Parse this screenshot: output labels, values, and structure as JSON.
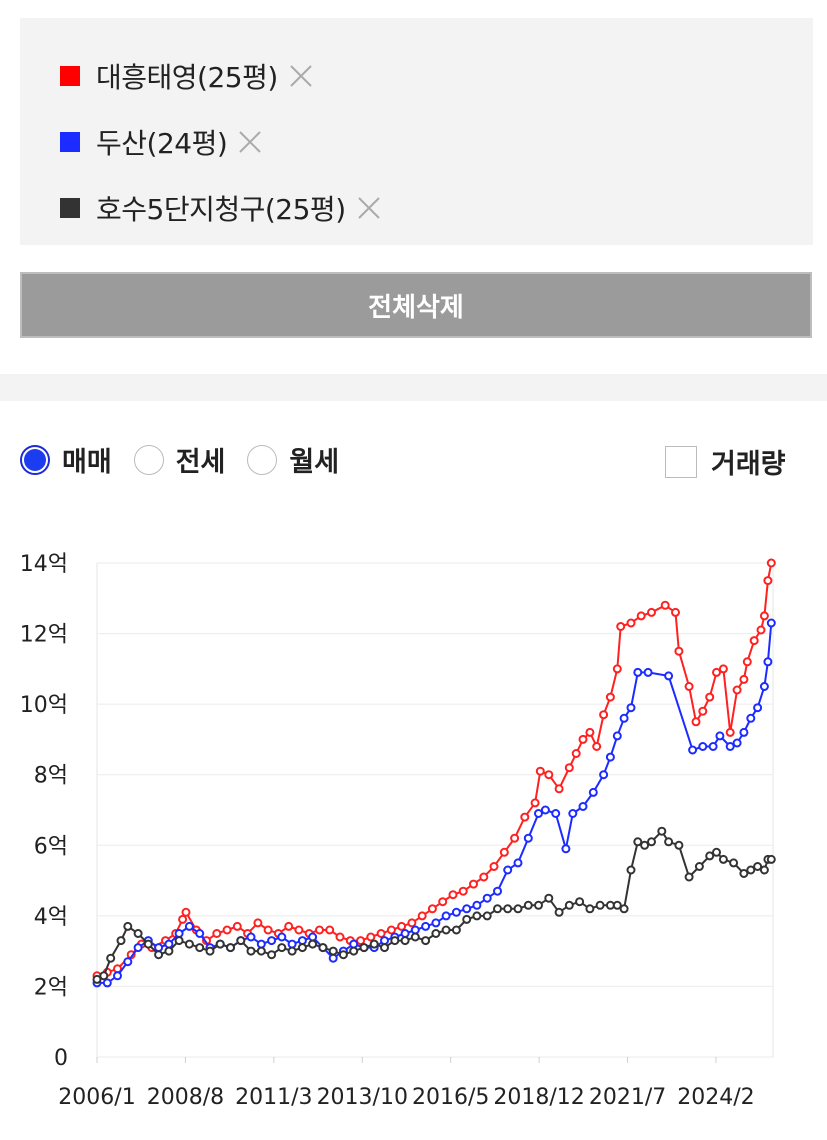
{
  "legend": {
    "items": [
      {
        "label": "대흥태영(25평)",
        "color": "#ff0000"
      },
      {
        "label": "두산(24평)",
        "color": "#1c2bff"
      },
      {
        "label": "호수5단지청구(25평)",
        "color": "#333333"
      }
    ],
    "remove_icon": "close-icon"
  },
  "delete_all_label": "전체삭제",
  "trade_types": [
    {
      "label": "매매",
      "selected": true
    },
    {
      "label": "전세",
      "selected": false
    },
    {
      "label": "월세",
      "selected": false
    }
  ],
  "volume_label": "거래량",
  "volume_checked": false,
  "chart_data": {
    "type": "line",
    "xlabel": "",
    "ylabel": "",
    "x_ticks": [
      "2006/1",
      "2008/8",
      "2011/3",
      "2013/10",
      "2016/5",
      "2018/12",
      "2021/7",
      "2024/2"
    ],
    "y_ticks": [
      "0",
      "2억",
      "4억",
      "6억",
      "8억",
      "10억",
      "12억",
      "14억"
    ],
    "ylim": [
      0,
      14
    ],
    "xlim": [
      2006.0,
      2025.75
    ],
    "grid": true,
    "legend_position": "top",
    "series": [
      {
        "name": "대흥태영(25평)",
        "color": "#ff2020",
        "points": [
          [
            2006.0,
            2.3
          ],
          [
            2006.3,
            2.4
          ],
          [
            2006.6,
            2.5
          ],
          [
            2007.0,
            2.9
          ],
          [
            2007.3,
            3.2
          ],
          [
            2007.6,
            3.1
          ],
          [
            2008.0,
            3.3
          ],
          [
            2008.3,
            3.5
          ],
          [
            2008.5,
            3.9
          ],
          [
            2008.6,
            4.1
          ],
          [
            2008.9,
            3.6
          ],
          [
            2009.2,
            3.3
          ],
          [
            2009.5,
            3.5
          ],
          [
            2009.8,
            3.6
          ],
          [
            2010.1,
            3.7
          ],
          [
            2010.4,
            3.5
          ],
          [
            2010.7,
            3.8
          ],
          [
            2011.0,
            3.6
          ],
          [
            2011.3,
            3.5
          ],
          [
            2011.6,
            3.7
          ],
          [
            2011.9,
            3.6
          ],
          [
            2012.2,
            3.5
          ],
          [
            2012.5,
            3.6
          ],
          [
            2012.8,
            3.6
          ],
          [
            2013.1,
            3.4
          ],
          [
            2013.4,
            3.3
          ],
          [
            2013.7,
            3.3
          ],
          [
            2014.0,
            3.4
          ],
          [
            2014.3,
            3.5
          ],
          [
            2014.6,
            3.6
          ],
          [
            2014.9,
            3.7
          ],
          [
            2015.2,
            3.8
          ],
          [
            2015.5,
            4.0
          ],
          [
            2015.8,
            4.2
          ],
          [
            2016.1,
            4.4
          ],
          [
            2016.4,
            4.6
          ],
          [
            2016.7,
            4.7
          ],
          [
            2017.0,
            4.9
          ],
          [
            2017.3,
            5.1
          ],
          [
            2017.6,
            5.4
          ],
          [
            2017.9,
            5.8
          ],
          [
            2018.2,
            6.2
          ],
          [
            2018.5,
            6.8
          ],
          [
            2018.8,
            7.2
          ],
          [
            2018.95,
            8.1
          ],
          [
            2019.2,
            8.0
          ],
          [
            2019.5,
            7.6
          ],
          [
            2019.8,
            8.2
          ],
          [
            2020.0,
            8.6
          ],
          [
            2020.2,
            9.0
          ],
          [
            2020.4,
            9.2
          ],
          [
            2020.6,
            8.8
          ],
          [
            2020.8,
            9.7
          ],
          [
            2021.0,
            10.2
          ],
          [
            2021.2,
            11.0
          ],
          [
            2021.3,
            12.2
          ],
          [
            2021.6,
            12.3
          ],
          [
            2021.9,
            12.5
          ],
          [
            2022.2,
            12.6
          ],
          [
            2022.6,
            12.8
          ],
          [
            2022.9,
            12.6
          ],
          [
            2023.0,
            11.5
          ],
          [
            2023.3,
            10.5
          ],
          [
            2023.5,
            9.5
          ],
          [
            2023.7,
            9.8
          ],
          [
            2023.9,
            10.2
          ],
          [
            2024.1,
            10.9
          ],
          [
            2024.3,
            11.0
          ],
          [
            2024.5,
            9.2
          ],
          [
            2024.7,
            10.4
          ],
          [
            2024.9,
            10.7
          ],
          [
            2025.0,
            11.2
          ],
          [
            2025.2,
            11.8
          ],
          [
            2025.4,
            12.1
          ],
          [
            2025.5,
            12.5
          ],
          [
            2025.6,
            13.5
          ],
          [
            2025.7,
            14.0
          ]
        ]
      },
      {
        "name": "두산(24평)",
        "color": "#1c2bff",
        "points": [
          [
            2006.0,
            2.1
          ],
          [
            2006.3,
            2.1
          ],
          [
            2006.6,
            2.3
          ],
          [
            2006.9,
            2.7
          ],
          [
            2007.2,
            3.1
          ],
          [
            2007.5,
            3.3
          ],
          [
            2007.8,
            3.1
          ],
          [
            2008.1,
            3.2
          ],
          [
            2008.4,
            3.5
          ],
          [
            2008.7,
            3.7
          ],
          [
            2009.0,
            3.5
          ],
          [
            2009.3,
            3.1
          ],
          [
            2009.6,
            3.2
          ],
          [
            2009.9,
            3.1
          ],
          [
            2010.2,
            3.3
          ],
          [
            2010.5,
            3.4
          ],
          [
            2010.8,
            3.2
          ],
          [
            2011.1,
            3.3
          ],
          [
            2011.4,
            3.4
          ],
          [
            2011.7,
            3.2
          ],
          [
            2012.0,
            3.3
          ],
          [
            2012.3,
            3.4
          ],
          [
            2012.6,
            3.1
          ],
          [
            2012.9,
            2.8
          ],
          [
            2013.2,
            3.0
          ],
          [
            2013.5,
            3.2
          ],
          [
            2013.8,
            3.1
          ],
          [
            2014.1,
            3.1
          ],
          [
            2014.4,
            3.3
          ],
          [
            2014.7,
            3.4
          ],
          [
            2015.0,
            3.5
          ],
          [
            2015.3,
            3.6
          ],
          [
            2015.6,
            3.7
          ],
          [
            2015.9,
            3.8
          ],
          [
            2016.2,
            4.0
          ],
          [
            2016.5,
            4.1
          ],
          [
            2016.8,
            4.2
          ],
          [
            2017.1,
            4.3
          ],
          [
            2017.4,
            4.5
          ],
          [
            2017.7,
            4.7
          ],
          [
            2018.0,
            5.3
          ],
          [
            2018.3,
            5.5
          ],
          [
            2018.6,
            6.2
          ],
          [
            2018.9,
            6.9
          ],
          [
            2019.1,
            7.0
          ],
          [
            2019.4,
            6.9
          ],
          [
            2019.7,
            5.9
          ],
          [
            2019.9,
            6.9
          ],
          [
            2020.2,
            7.1
          ],
          [
            2020.5,
            7.5
          ],
          [
            2020.8,
            8.0
          ],
          [
            2021.0,
            8.5
          ],
          [
            2021.2,
            9.1
          ],
          [
            2021.4,
            9.6
          ],
          [
            2021.6,
            9.9
          ],
          [
            2021.8,
            10.9
          ],
          [
            2022.1,
            10.9
          ],
          [
            2022.7,
            10.8
          ],
          [
            2023.4,
            8.7
          ],
          [
            2023.7,
            8.8
          ],
          [
            2024.0,
            8.8
          ],
          [
            2024.2,
            9.1
          ],
          [
            2024.5,
            8.8
          ],
          [
            2024.7,
            8.9
          ],
          [
            2024.9,
            9.2
          ],
          [
            2025.1,
            9.6
          ],
          [
            2025.3,
            9.9
          ],
          [
            2025.5,
            10.5
          ],
          [
            2025.6,
            11.2
          ],
          [
            2025.7,
            12.3
          ]
        ]
      },
      {
        "name": "호수5단지청구(25평)",
        "color": "#333333",
        "points": [
          [
            2006.0,
            2.2
          ],
          [
            2006.2,
            2.3
          ],
          [
            2006.4,
            2.8
          ],
          [
            2006.7,
            3.3
          ],
          [
            2006.9,
            3.7
          ],
          [
            2007.2,
            3.5
          ],
          [
            2007.5,
            3.2
          ],
          [
            2007.8,
            2.9
          ],
          [
            2008.1,
            3.0
          ],
          [
            2008.4,
            3.3
          ],
          [
            2008.7,
            3.2
          ],
          [
            2009.0,
            3.1
          ],
          [
            2009.3,
            3.0
          ],
          [
            2009.6,
            3.2
          ],
          [
            2009.9,
            3.1
          ],
          [
            2010.2,
            3.3
          ],
          [
            2010.5,
            3.0
          ],
          [
            2010.8,
            3.0
          ],
          [
            2011.1,
            2.9
          ],
          [
            2011.4,
            3.1
          ],
          [
            2011.7,
            3.0
          ],
          [
            2012.0,
            3.1
          ],
          [
            2012.3,
            3.2
          ],
          [
            2012.6,
            3.1
          ],
          [
            2012.9,
            3.0
          ],
          [
            2013.2,
            2.9
          ],
          [
            2013.5,
            3.0
          ],
          [
            2013.8,
            3.1
          ],
          [
            2014.1,
            3.2
          ],
          [
            2014.4,
            3.1
          ],
          [
            2014.7,
            3.3
          ],
          [
            2015.0,
            3.3
          ],
          [
            2015.3,
            3.4
          ],
          [
            2015.6,
            3.3
          ],
          [
            2015.9,
            3.5
          ],
          [
            2016.2,
            3.6
          ],
          [
            2016.5,
            3.6
          ],
          [
            2016.8,
            3.9
          ],
          [
            2017.1,
            4.0
          ],
          [
            2017.4,
            4.0
          ],
          [
            2017.7,
            4.2
          ],
          [
            2018.0,
            4.2
          ],
          [
            2018.3,
            4.2
          ],
          [
            2018.6,
            4.3
          ],
          [
            2018.9,
            4.3
          ],
          [
            2019.2,
            4.5
          ],
          [
            2019.5,
            4.1
          ],
          [
            2019.8,
            4.3
          ],
          [
            2020.1,
            4.4
          ],
          [
            2020.4,
            4.2
          ],
          [
            2020.7,
            4.3
          ],
          [
            2021.0,
            4.3
          ],
          [
            2021.2,
            4.3
          ],
          [
            2021.4,
            4.2
          ],
          [
            2021.6,
            5.3
          ],
          [
            2021.8,
            6.1
          ],
          [
            2022.0,
            6.0
          ],
          [
            2022.2,
            6.1
          ],
          [
            2022.5,
            6.4
          ],
          [
            2022.7,
            6.1
          ],
          [
            2023.0,
            6.0
          ],
          [
            2023.3,
            5.1
          ],
          [
            2023.6,
            5.4
          ],
          [
            2023.9,
            5.7
          ],
          [
            2024.1,
            5.8
          ],
          [
            2024.3,
            5.6
          ],
          [
            2024.6,
            5.5
          ],
          [
            2024.9,
            5.2
          ],
          [
            2025.1,
            5.3
          ],
          [
            2025.3,
            5.4
          ],
          [
            2025.5,
            5.3
          ],
          [
            2025.6,
            5.6
          ],
          [
            2025.7,
            5.6
          ]
        ]
      }
    ]
  }
}
